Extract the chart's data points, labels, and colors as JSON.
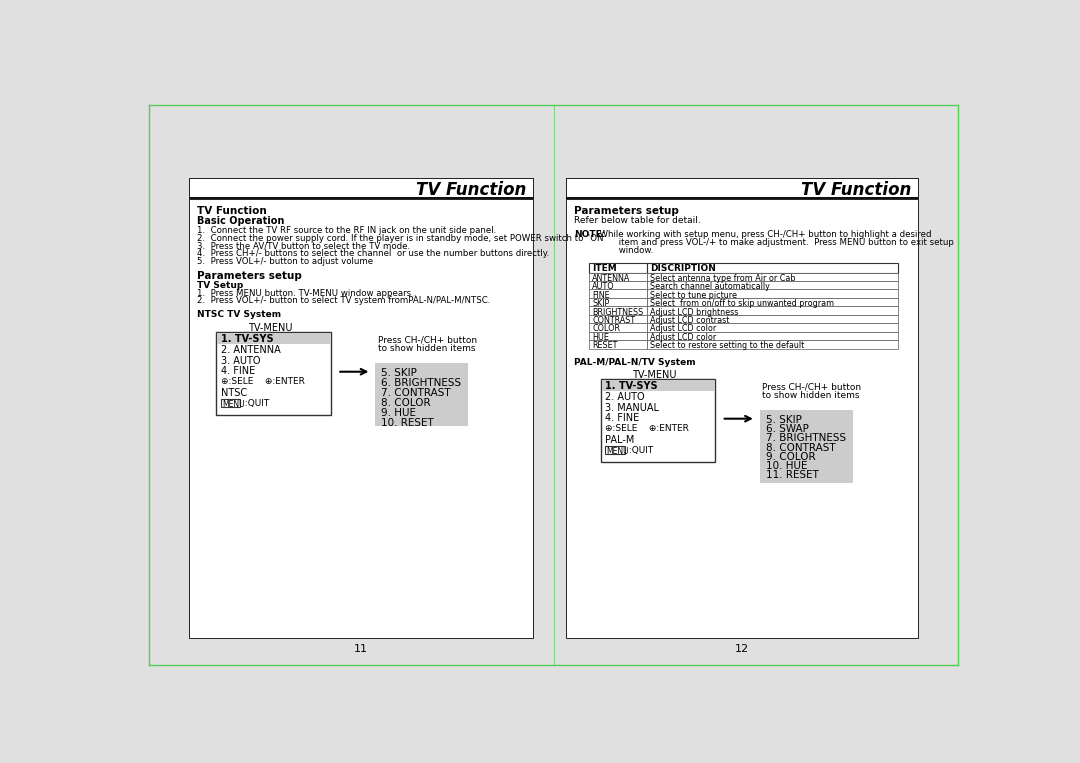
{
  "bg_color": "#e8e8e8",
  "page_bg": "#e0e0e0",
  "title_text": "TV Function",
  "page1_number": "11",
  "page2_number": "12",
  "left_page": {
    "section_title": "TV Function",
    "subsection1": "Basic Operation",
    "basic_op_lines": [
      "1.  Connect the TV RF source to the RF IN jack on the unit side panel.",
      "2.  Connect the power supply cord. If the player is in standby mode, set POWER switch to \"ON",
      "3.  Press the AV/TV button to select the TV mode.",
      "4.  Press CH+/- buttons to select the channel  or use the number buttons directly.",
      "5.  Press VOL+/- button to adjust volume"
    ],
    "subsection2": "Parameters setup",
    "tv_setup_title": "TV Setup",
    "tv_setup_lines": [
      "1.  Press MENU button. TV-MENU window appears .",
      "2.  Press VOL+/- button to select TV system fromPAL-N/PAL-M/NTSC."
    ],
    "ntsc_title": "NTSC TV System",
    "menu_title": "TV-MENU",
    "menu_items": [
      "1. TV-SYS",
      "2. ANTENNA",
      "3. AUTO",
      "4. FINE",
      "⊕ : SELE    ⊕ : ENTER",
      "NTSC",
      "MENU  : QUIT"
    ],
    "hidden_label_line1": "Press CH-/CH+ button",
    "hidden_label_line2": "to show hidden items",
    "hidden_items": [
      "5. SKIP",
      "6. BRIGHTNESS",
      "7. CONTRAST",
      "8. COLOR",
      "9. HUE",
      "10. RESET"
    ]
  },
  "right_page": {
    "section_title": "Parameters setup",
    "refer_text": "Refer below table for detail.",
    "note_bold": "NOTE:",
    "note_lines": [
      "  While working with setup menu, press CH-/CH+ button to highlight a desired",
      "         item and press VOL-/+ to make adjustment.  Press MENU button to exit setup",
      "         window."
    ],
    "table_headers": [
      "ITEM",
      "DISCRIPTION"
    ],
    "table_rows": [
      [
        "ANTENNA",
        "Select antenna type from Air or Cab"
      ],
      [
        "AUTO",
        "Search channel automatically"
      ],
      [
        "FINE",
        "Select to tune picture"
      ],
      [
        "SKIP",
        "Select  from on/off to skip unwanted program"
      ],
      [
        "BRIGHTNESS",
        "Adjust LCD brightness"
      ],
      [
        "CONTRAST",
        "Adjust LCD contrast"
      ],
      [
        "COLOR",
        "Adjust LCD color"
      ],
      [
        "HUE",
        "Adjust LCD color"
      ],
      [
        "RESET",
        "Select to restore setting to the default"
      ]
    ],
    "pal_title": "PAL-M/PAL-N/TV System",
    "menu_title": "TV-MENU",
    "menu_items": [
      "1. TV-SYS",
      "2. AUTO",
      "3. MANUAL",
      "4. FINE",
      "⊕ : SELE    ⊕ : ENTER",
      "PAL-M",
      "MENU  : QUIT"
    ],
    "hidden_label_line1": "Press CH-/CH+ button",
    "hidden_label_line2": "to show hidden items",
    "hidden_items": [
      "5. SKIP",
      "6. SWAP",
      "7. BRIGHTNESS",
      "8. CONTRAST",
      "9. COLOR",
      "10. HUE",
      "11. RESET"
    ]
  }
}
